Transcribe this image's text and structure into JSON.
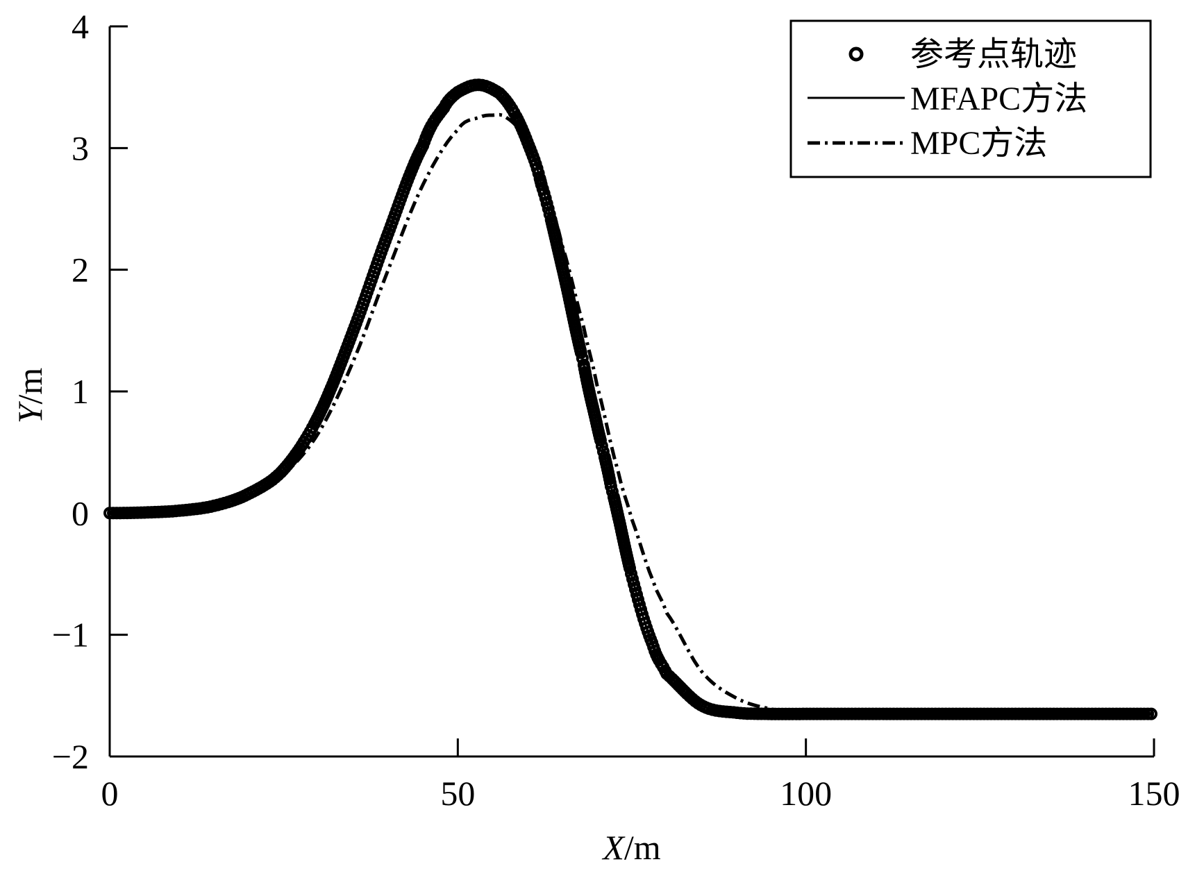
{
  "chart_data": {
    "type": "line",
    "title": "",
    "xlabel": "X/m",
    "ylabel": "Y/m",
    "xlabel_var": "X",
    "xlabel_unit": "/m",
    "ylabel_var": "Y",
    "ylabel_unit": "/m",
    "xlim": [
      0,
      150
    ],
    "ylim": [
      -2,
      4
    ],
    "xticks": [
      0,
      50,
      100,
      150
    ],
    "xtick_labels": [
      "0",
      "50",
      "100",
      "150"
    ],
    "yticks": [
      -2,
      -1,
      0,
      1,
      2,
      3,
      4
    ],
    "ytick_labels": [
      "−2",
      "−1",
      "0",
      "1",
      "2",
      "3",
      "4"
    ],
    "grid": false,
    "legend_position": "top-right",
    "series": [
      {
        "name": "参考点轨迹",
        "style": "circle-markers",
        "color": "#000000",
        "x": [
          0,
          5,
          10,
          15,
          20,
          25,
          30,
          35,
          40,
          45,
          48,
          50,
          53,
          56,
          58,
          60,
          62,
          65,
          68,
          70,
          72,
          75,
          78,
          80,
          85,
          90,
          95,
          100,
          110,
          120,
          130,
          140,
          150
        ],
        "y": [
          0.0,
          0.005,
          0.02,
          0.06,
          0.16,
          0.36,
          0.8,
          1.5,
          2.3,
          3.02,
          3.33,
          3.46,
          3.52,
          3.45,
          3.3,
          3.05,
          2.7,
          2.02,
          1.25,
          0.72,
          0.22,
          -0.52,
          -1.08,
          -1.32,
          -1.58,
          -1.64,
          -1.65,
          -1.65,
          -1.65,
          -1.65,
          -1.65,
          -1.65,
          -1.65
        ]
      },
      {
        "name": "MFAPC方法",
        "style": "solid",
        "color": "#000000",
        "x": [
          0,
          5,
          10,
          15,
          20,
          25,
          30,
          35,
          40,
          45,
          48,
          50,
          53,
          56,
          58,
          60,
          62,
          65,
          68,
          70,
          72,
          75,
          78,
          80,
          85,
          90,
          95,
          100,
          110,
          120,
          130,
          140,
          150
        ],
        "y": [
          0.0,
          0.005,
          0.02,
          0.06,
          0.16,
          0.36,
          0.8,
          1.5,
          2.3,
          3.02,
          3.33,
          3.46,
          3.52,
          3.45,
          3.3,
          3.05,
          2.7,
          2.02,
          1.25,
          0.72,
          0.22,
          -0.52,
          -1.08,
          -1.32,
          -1.58,
          -1.64,
          -1.65,
          -1.65,
          -1.65,
          -1.65,
          -1.65,
          -1.65,
          -1.65
        ]
      },
      {
        "name": "MPC方法",
        "style": "dash-dot",
        "color": "#000000",
        "x": [
          0,
          5,
          10,
          15,
          20,
          25,
          30,
          35,
          40,
          45,
          50,
          53,
          55,
          57,
          60,
          63,
          65,
          68,
          70,
          73,
          75,
          78,
          80,
          85,
          90,
          95,
          100,
          110,
          120,
          130,
          140,
          150
        ],
        "y": [
          0.0,
          0.005,
          0.02,
          0.06,
          0.15,
          0.32,
          0.66,
          1.25,
          2.0,
          2.7,
          3.15,
          3.25,
          3.27,
          3.25,
          3.05,
          2.6,
          2.2,
          1.55,
          1.05,
          0.35,
          -0.05,
          -0.55,
          -0.82,
          -1.3,
          -1.52,
          -1.61,
          -1.64,
          -1.65,
          -1.65,
          -1.65,
          -1.65,
          -1.65
        ]
      }
    ]
  }
}
